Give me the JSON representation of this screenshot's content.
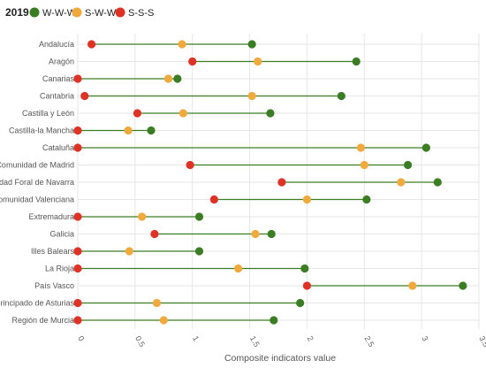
{
  "chart_data": {
    "type": "dumbbell",
    "title": "2019",
    "xlabel": "Composite indicators value",
    "ylabel": "",
    "xlim": [
      0,
      3.5
    ],
    "x_ticks": [
      "0",
      "0.5",
      "1",
      "1.5",
      "2",
      "2.5",
      "3",
      "3.5"
    ],
    "legend_position": "top-left",
    "grid": true,
    "categories": [
      "Andalucía",
      "Aragón",
      "Canarias",
      "Cantabria",
      "Castilla y León",
      "Castilla-la Mancha",
      "Cataluña",
      "Comunidad de Madrid",
      "Comunidad Foral de Navarra",
      "Comunidad Valenciana",
      "Extremadura",
      "Galicia",
      "Illes Balears",
      "La Rioja",
      "País Vasco",
      "Principado de Asturias",
      "Región de Murcia"
    ],
    "series": [
      {
        "name": "W-W-W",
        "color": "#3a7d23",
        "values": [
          1.52,
          2.43,
          0.87,
          2.3,
          1.68,
          0.64,
          3.04,
          2.88,
          3.14,
          2.52,
          1.06,
          1.69,
          1.06,
          1.98,
          3.36,
          1.94,
          1.71
        ]
      },
      {
        "name": "S-W-W",
        "color": "#f2a93b",
        "values": [
          0.91,
          1.57,
          0.79,
          1.52,
          0.92,
          0.44,
          2.47,
          2.5,
          2.82,
          2.0,
          0.56,
          1.55,
          0.45,
          1.4,
          2.92,
          0.69,
          0.75
        ]
      },
      {
        "name": "S-S-S",
        "color": "#e03224",
        "values": [
          0.12,
          1.0,
          0.0,
          0.06,
          0.52,
          0.0,
          0.0,
          0.98,
          1.78,
          1.19,
          0.0,
          0.67,
          0.0,
          0.0,
          2.0,
          0.0,
          0.0
        ]
      }
    ]
  }
}
